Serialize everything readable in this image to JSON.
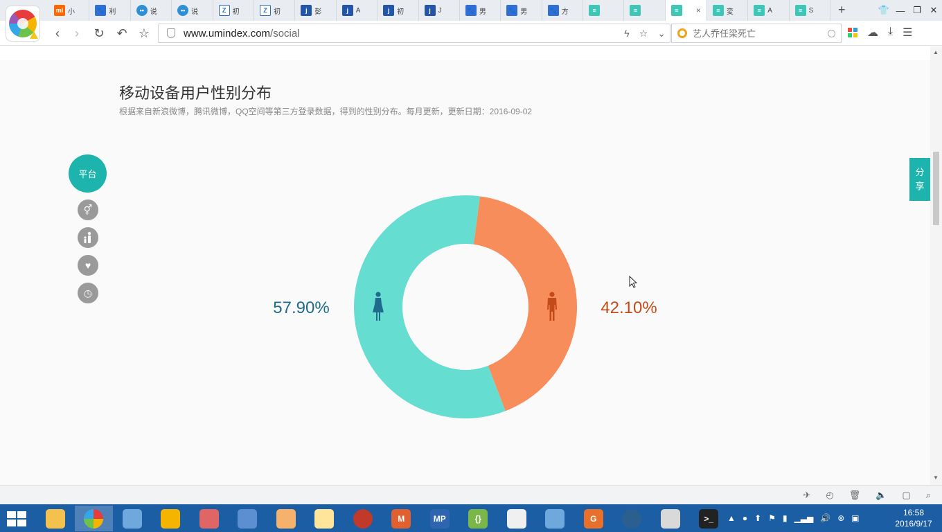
{
  "browser": {
    "tabs": [
      {
        "icon": "mi",
        "glyph": "mi",
        "title": "小"
      },
      {
        "icon": "paw",
        "glyph": "🐾",
        "title": "利"
      },
      {
        "icon": "bubble",
        "glyph": "••",
        "title": "说"
      },
      {
        "icon": "bubble",
        "glyph": "••",
        "title": "说"
      },
      {
        "icon": "leaf",
        "glyph": "Z",
        "title": "初"
      },
      {
        "icon": "leaf",
        "glyph": "Z",
        "title": "初"
      },
      {
        "icon": "j",
        "glyph": "j",
        "title": "彭"
      },
      {
        "icon": "j",
        "glyph": "j",
        "title": "A"
      },
      {
        "icon": "j",
        "glyph": "j",
        "title": "初"
      },
      {
        "icon": "j",
        "glyph": "j",
        "title": "J"
      },
      {
        "icon": "paw",
        "glyph": "🐾",
        "title": "男"
      },
      {
        "icon": "paw",
        "glyph": "🐾",
        "title": "男"
      },
      {
        "icon": "paw",
        "glyph": "🐾",
        "title": "方"
      },
      {
        "icon": "um",
        "glyph": "≡",
        "title": ""
      },
      {
        "icon": "um",
        "glyph": "≡",
        "title": ""
      },
      {
        "icon": "um",
        "glyph": "≡",
        "title": "",
        "active": true
      },
      {
        "icon": "um",
        "glyph": "≡",
        "title": "変"
      },
      {
        "icon": "um",
        "glyph": "≡",
        "title": "A"
      },
      {
        "icon": "um",
        "glyph": "≡",
        "title": "S"
      }
    ],
    "tab_close": "×",
    "new_tab": "+",
    "url_host": "www.umindex.com",
    "url_path": "/social",
    "search_placeholder": "艺人乔任梁死亡"
  },
  "page": {
    "title": "移动设备用户性别分布",
    "subtitle": "根据来自新浪微博，腾讯微博，QQ空间等第三方登录数据，得到的性别分布。每月更新，更新日期：2016-09-02",
    "side_nav": {
      "main_label": "平台",
      "items": [
        "gender-icon",
        "family-icon",
        "heart-icon",
        "clock-icon"
      ]
    },
    "share_label_1": "分",
    "share_label_2": "享"
  },
  "chart_data": {
    "type": "pie",
    "variant": "donut",
    "title": "",
    "series": [
      {
        "name": "",
        "icon": "female-icon",
        "value": 57.9,
        "label": "57.90%",
        "color": "#66ddd1",
        "label_color": "#1f6b8c"
      },
      {
        "name": "",
        "icon": "male-icon",
        "value": 42.1,
        "label": "42.10%",
        "color": "#f68d5a",
        "label_color": "#c44a1a"
      }
    ]
  },
  "taskbar": {
    "apps": [
      "explorer",
      "browser",
      "paint",
      "tool",
      "search",
      "snip",
      "chart",
      "files",
      "ball",
      "mail",
      "mp",
      "brackets",
      "java",
      "photos",
      "pdf",
      "circle",
      "eye",
      "cmd"
    ],
    "clock_time": "16:58",
    "clock_date": "2016/9/17"
  }
}
